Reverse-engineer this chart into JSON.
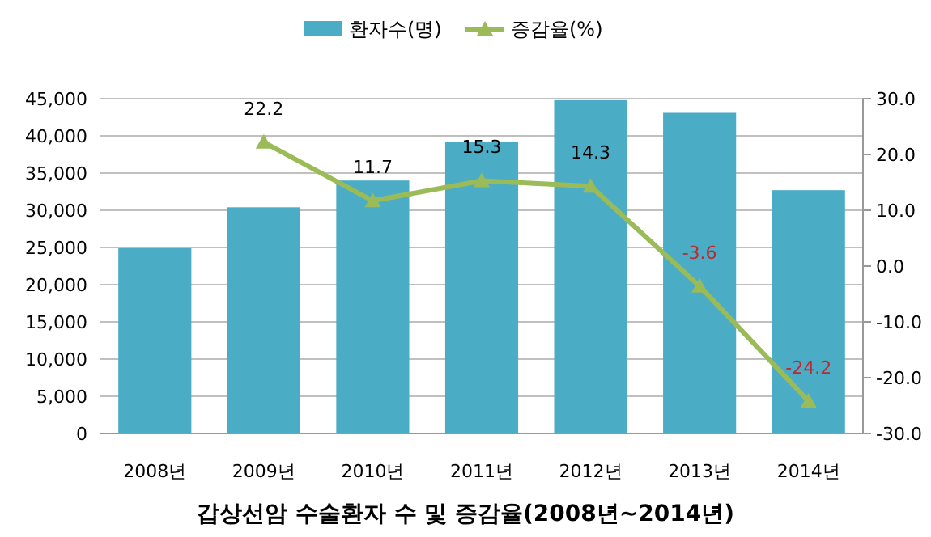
{
  "chart_data": {
    "type": "bar",
    "title": "갑상선암 수술환자 수 및 증감율(2008년~2014년)",
    "categories": [
      "2008년",
      "2009년",
      "2010년",
      "2011년",
      "2012년",
      "2013년",
      "2014년"
    ],
    "series": [
      {
        "name": "환자수(명)",
        "color": "#4bacc6",
        "values": [
          24900,
          30400,
          34000,
          39200,
          44800,
          43100,
          32700
        ]
      },
      {
        "name": "증감율(%)",
        "type": "line",
        "axis": "y2",
        "color": "#9bbb59",
        "marker": "triangle",
        "values": [
          null,
          22.2,
          11.7,
          15.3,
          14.3,
          -3.6,
          -24.2
        ],
        "data_labels": true
      }
    ],
    "ylim": [
      0,
      45000
    ],
    "yticks": [
      0,
      {
        "value": 5000,
        "label": "5,000"
      },
      {
        "value": 10000,
        "label": "10,000"
      },
      {
        "value": 15000,
        "label": "15,000"
      },
      {
        "value": 20000,
        "label": "20,000"
      },
      {
        "value": 25000,
        "label": "25,000"
      },
      {
        "value": 30000,
        "label": "30,000"
      },
      {
        "value": 35000,
        "label": "35,000"
      },
      {
        "value": 40000,
        "label": "40,000"
      },
      {
        "value": 45000,
        "label": "45,000"
      }
    ],
    "y2lim": [
      -30,
      30
    ],
    "y2ticks": [
      {
        "value": -30,
        "label": "-30.0"
      },
      {
        "value": -20,
        "label": "-20.0"
      },
      {
        "value": -10,
        "label": "-10.0"
      },
      {
        "value": 0,
        "label": "0.0"
      },
      {
        "value": 10,
        "label": "10.0"
      },
      {
        "value": 20,
        "label": "20.0"
      },
      {
        "value": 30,
        "label": "30.0"
      }
    ],
    "grid": "y",
    "legend": "top"
  }
}
